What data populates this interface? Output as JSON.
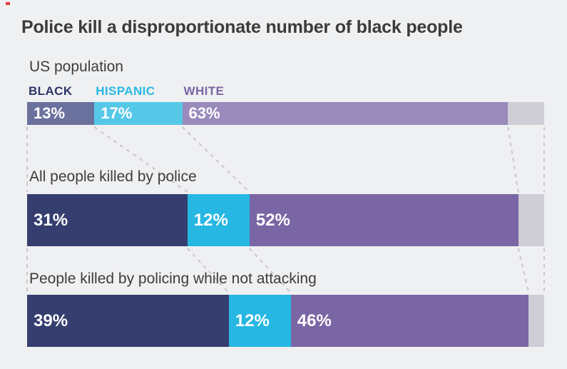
{
  "page": {
    "background": "#eff0f2"
  },
  "brand": {
    "mark_color": "#e23b34"
  },
  "title": {
    "text": "Police kill a disproportionate number of black people",
    "color": "#3b3b3b"
  },
  "legend": {
    "items": [
      {
        "label": "BLACK",
        "color": "#2e3566"
      },
      {
        "label": "HISPANIC",
        "color": "#29b8e2"
      },
      {
        "label": "WHITE",
        "color": "#7a65a5"
      }
    ]
  },
  "chart_data": {
    "type": "bar",
    "variant": "horizontal-stacked-percent",
    "title": "Police kill a disproportionate number of black people",
    "axis_max": 100,
    "value_suffix": "%",
    "grid": false,
    "legend_position": "above-first-bar",
    "categories": [
      "Black",
      "Hispanic",
      "White"
    ],
    "rows": [
      {
        "label": "US population",
        "values": [
          13,
          17,
          63
        ],
        "colors": [
          "#6a719d",
          "#56c8e7",
          "#998abb"
        ]
      },
      {
        "label": "All people killed by police",
        "values": [
          31,
          12,
          52
        ],
        "colors": [
          "#353e6e",
          "#26b7e2",
          "#7a65a5"
        ]
      },
      {
        "label": "People killed by policing while not attacking",
        "values": [
          39,
          12,
          46
        ],
        "colors": [
          "#353e6e",
          "#26b7e2",
          "#7a65a5"
        ]
      }
    ],
    "remainder_color": "#cfcdd6",
    "connector_color": "#c7c6ca",
    "value_label_color": "#ffffff",
    "annotations": "dashed lines connect segment boundaries between consecutive bars"
  }
}
